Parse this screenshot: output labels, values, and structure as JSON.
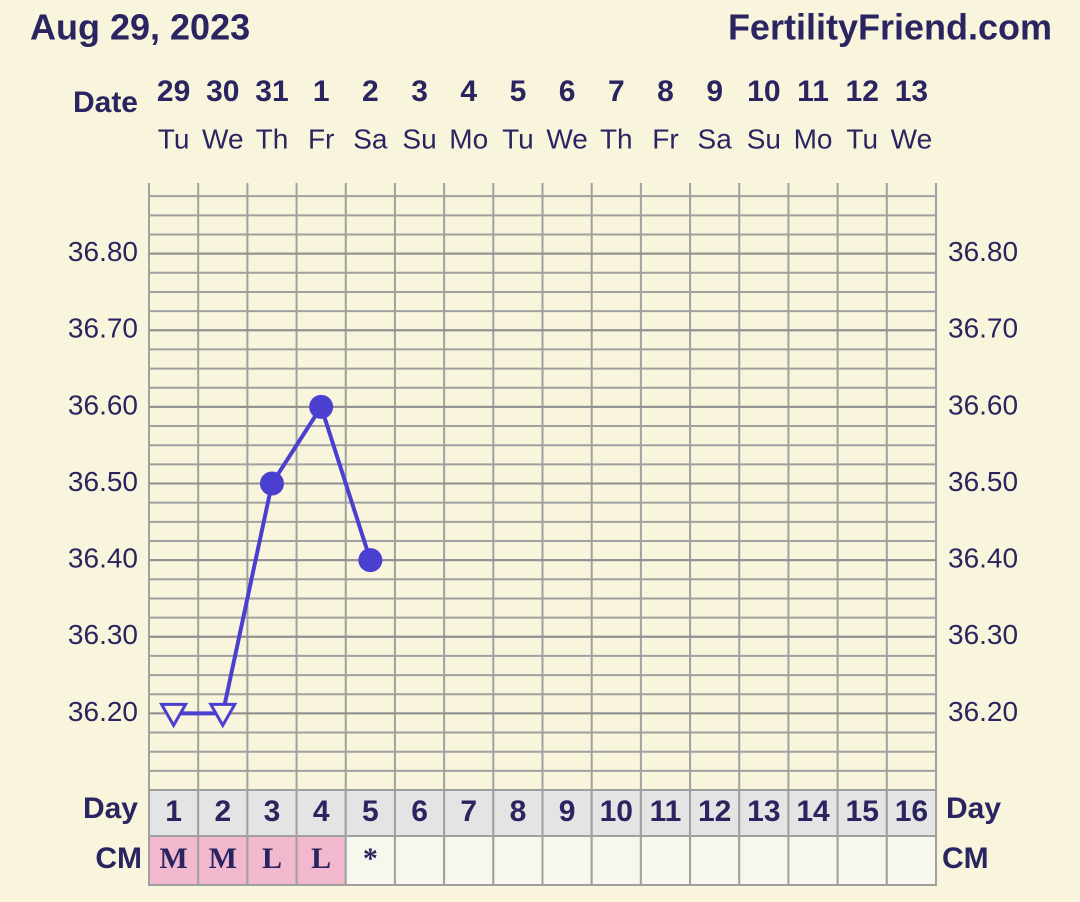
{
  "chart_data": {
    "type": "line",
    "title": "Aug 29, 2023",
    "site": "FertilityFriend.com",
    "date_label": "Date",
    "dates": [
      "29",
      "30",
      "31",
      "1",
      "2",
      "3",
      "4",
      "5",
      "6",
      "7",
      "8",
      "9",
      "10",
      "11",
      "12",
      "13"
    ],
    "weekdays": [
      "Tu",
      "We",
      "Th",
      "Fr",
      "Sa",
      "Su",
      "Mo",
      "Tu",
      "We",
      "Th",
      "Fr",
      "Sa",
      "Su",
      "Mo",
      "Tu",
      "We"
    ],
    "day_label": "Day",
    "categories": [
      1,
      2,
      3,
      4,
      5,
      6,
      7,
      8,
      9,
      10,
      11,
      12,
      13,
      14,
      15,
      16
    ],
    "cm_label": "CM",
    "cm": [
      "M",
      "M",
      "L",
      "L",
      "*",
      null,
      null,
      null,
      null,
      null,
      null,
      null,
      null,
      null,
      null,
      null
    ],
    "cm_fill": "#f2b8cd",
    "series": [
      {
        "name": "Temperature",
        "color": "#4b3fcf",
        "values": [
          36.2,
          36.2,
          36.5,
          36.6,
          36.4,
          null,
          null,
          null,
          null,
          null,
          null,
          null,
          null,
          null,
          null,
          null
        ],
        "markers": [
          "triangle",
          "triangle",
          "circle",
          "circle",
          "circle",
          null,
          null,
          null,
          null,
          null,
          null,
          null,
          null,
          null,
          null,
          null
        ]
      }
    ],
    "ylim": [
      36.1,
      36.9
    ],
    "yticks": [
      {
        "value": 36.2,
        "label": "36.20"
      },
      {
        "value": 36.3,
        "label": "36.30"
      },
      {
        "value": 36.4,
        "label": "36.40"
      },
      {
        "value": 36.5,
        "label": "36.50"
      },
      {
        "value": 36.6,
        "label": "36.60"
      },
      {
        "value": 36.7,
        "label": "36.70"
      },
      {
        "value": 36.8,
        "label": "36.80"
      }
    ],
    "grid": true
  }
}
